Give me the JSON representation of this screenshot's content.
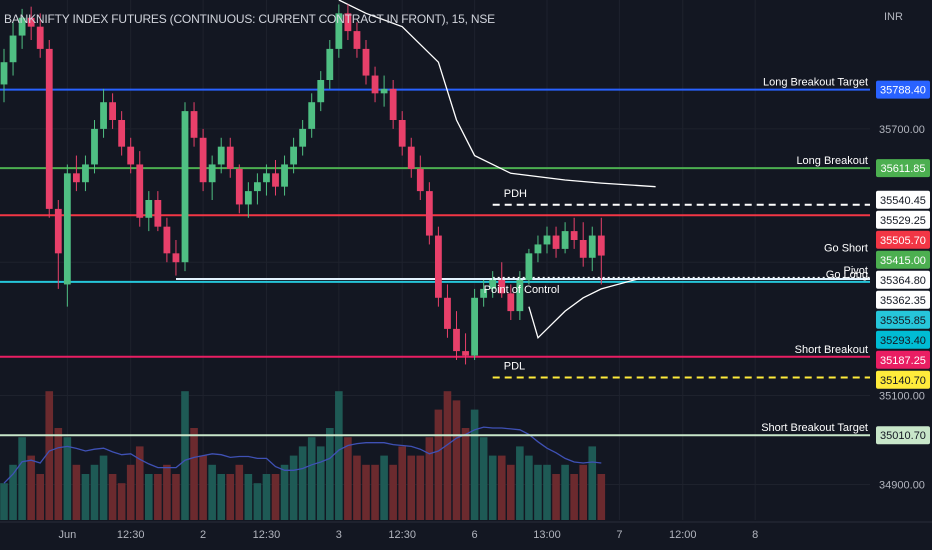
{
  "header": {
    "symbol_title": "BANKNIFTY INDEX FUTURES (CONTINUOUS: CURRENT CONTRACT IN FRONT), 15, NSE",
    "currency": "INR"
  },
  "chart_data": {
    "type": "candlestick",
    "title": "BANKNIFTY INDEX FUTURES (CONTINUOUS: CURRENT CONTRACT IN FRONT), 15, NSE",
    "ylim": [
      34820,
      35990
    ],
    "y_scale_labels": [
      "35700.00",
      "35100.00",
      "34900.00"
    ],
    "x_labels": [
      {
        "label": "Jun",
        "bar": 7
      },
      {
        "label": "12:30",
        "bar": 14
      },
      {
        "label": "2",
        "bar": 22
      },
      {
        "label": "12:30",
        "bar": 29
      },
      {
        "label": "3",
        "bar": 37
      },
      {
        "label": "12:30",
        "bar": 44
      },
      {
        "label": "6",
        "bar": 52
      },
      {
        "label": "13:00",
        "bar": 60
      },
      {
        "label": "7",
        "bar": 68
      },
      {
        "label": "12:00",
        "bar": 75
      },
      {
        "label": "8",
        "bar": 83
      }
    ],
    "colors": {
      "up": "#26a69a",
      "down": "#ef5350",
      "up_vol": "#1e5a55",
      "down_vol": "#6b2a2e",
      "poc_line": "#ffffff",
      "vol_ma": "#3f51b5"
    },
    "candles": [
      {
        "o": 35800,
        "h": 35880,
        "l": 35760,
        "c": 35850
      },
      {
        "o": 35850,
        "h": 35940,
        "l": 35820,
        "c": 35910
      },
      {
        "o": 35910,
        "h": 35970,
        "l": 35880,
        "c": 35950
      },
      {
        "o": 35950,
        "h": 35975,
        "l": 35900,
        "c": 35930
      },
      {
        "o": 35930,
        "h": 35960,
        "l": 35860,
        "c": 35880
      },
      {
        "o": 35880,
        "h": 35900,
        "l": 35500,
        "c": 35520
      },
      {
        "o": 35520,
        "h": 35540,
        "l": 35340,
        "c": 35420
      },
      {
        "o": 35350,
        "h": 35620,
        "l": 35300,
        "c": 35600
      },
      {
        "o": 35600,
        "h": 35640,
        "l": 35560,
        "c": 35580
      },
      {
        "o": 35580,
        "h": 35640,
        "l": 35560,
        "c": 35620
      },
      {
        "o": 35620,
        "h": 35720,
        "l": 35600,
        "c": 35700
      },
      {
        "o": 35700,
        "h": 35790,
        "l": 35680,
        "c": 35760
      },
      {
        "o": 35760,
        "h": 35780,
        "l": 35700,
        "c": 35720
      },
      {
        "o": 35720,
        "h": 35740,
        "l": 35640,
        "c": 35660
      },
      {
        "o": 35660,
        "h": 35680,
        "l": 35600,
        "c": 35620
      },
      {
        "o": 35620,
        "h": 35650,
        "l": 35480,
        "c": 35500
      },
      {
        "o": 35500,
        "h": 35560,
        "l": 35470,
        "c": 35540
      },
      {
        "o": 35540,
        "h": 35560,
        "l": 35470,
        "c": 35480
      },
      {
        "o": 35480,
        "h": 35500,
        "l": 35400,
        "c": 35420
      },
      {
        "o": 35420,
        "h": 35450,
        "l": 35370,
        "c": 35400
      },
      {
        "o": 35400,
        "h": 35760,
        "l": 35380,
        "c": 35740
      },
      {
        "o": 35740,
        "h": 35760,
        "l": 35660,
        "c": 35680
      },
      {
        "o": 35680,
        "h": 35700,
        "l": 35560,
        "c": 35580
      },
      {
        "o": 35580,
        "h": 35640,
        "l": 35540,
        "c": 35620
      },
      {
        "o": 35620,
        "h": 35680,
        "l": 35600,
        "c": 35660
      },
      {
        "o": 35660,
        "h": 35680,
        "l": 35590,
        "c": 35610
      },
      {
        "o": 35610,
        "h": 35620,
        "l": 35510,
        "c": 35530
      },
      {
        "o": 35530,
        "h": 35580,
        "l": 35500,
        "c": 35560
      },
      {
        "o": 35560,
        "h": 35600,
        "l": 35530,
        "c": 35580
      },
      {
        "o": 35580,
        "h": 35620,
        "l": 35550,
        "c": 35600
      },
      {
        "o": 35600,
        "h": 35630,
        "l": 35550,
        "c": 35570
      },
      {
        "o": 35570,
        "h": 35640,
        "l": 35550,
        "c": 35620
      },
      {
        "o": 35620,
        "h": 35680,
        "l": 35600,
        "c": 35660
      },
      {
        "o": 35660,
        "h": 35720,
        "l": 35640,
        "c": 35700
      },
      {
        "o": 35700,
        "h": 35780,
        "l": 35680,
        "c": 35760
      },
      {
        "o": 35760,
        "h": 35830,
        "l": 35740,
        "c": 35810
      },
      {
        "o": 35810,
        "h": 35900,
        "l": 35790,
        "c": 35880
      },
      {
        "o": 35880,
        "h": 35980,
        "l": 35860,
        "c": 35960
      },
      {
        "o": 35960,
        "h": 35980,
        "l": 35900,
        "c": 35920
      },
      {
        "o": 35920,
        "h": 35940,
        "l": 35860,
        "c": 35880
      },
      {
        "o": 35880,
        "h": 35900,
        "l": 35800,
        "c": 35820
      },
      {
        "o": 35820,
        "h": 35840,
        "l": 35760,
        "c": 35780
      },
      {
        "o": 35780,
        "h": 35820,
        "l": 35750,
        "c": 35790
      },
      {
        "o": 35790,
        "h": 35810,
        "l": 35700,
        "c": 35720
      },
      {
        "o": 35720,
        "h": 35740,
        "l": 35640,
        "c": 35660
      },
      {
        "o": 35660,
        "h": 35680,
        "l": 35590,
        "c": 35610
      },
      {
        "o": 35610,
        "h": 35640,
        "l": 35540,
        "c": 35560
      },
      {
        "o": 35560,
        "h": 35580,
        "l": 35440,
        "c": 35460
      },
      {
        "o": 35460,
        "h": 35480,
        "l": 35300,
        "c": 35320
      },
      {
        "o": 35320,
        "h": 35350,
        "l": 35230,
        "c": 35250
      },
      {
        "o": 35250,
        "h": 35290,
        "l": 35180,
        "c": 35200
      },
      {
        "o": 35200,
        "h": 35240,
        "l": 35170,
        "c": 35190
      },
      {
        "o": 35190,
        "h": 35340,
        "l": 35180,
        "c": 35320
      },
      {
        "o": 35320,
        "h": 35360,
        "l": 35300,
        "c": 35340
      },
      {
        "o": 35340,
        "h": 35380,
        "l": 35320,
        "c": 35360
      },
      {
        "o": 35360,
        "h": 35400,
        "l": 35320,
        "c": 35330
      },
      {
        "o": 35330,
        "h": 35350,
        "l": 35270,
        "c": 35290
      },
      {
        "o": 35290,
        "h": 35380,
        "l": 35270,
        "c": 35360
      },
      {
        "o": 35360,
        "h": 35430,
        "l": 35350,
        "c": 35420
      },
      {
        "o": 35420,
        "h": 35460,
        "l": 35400,
        "c": 35440
      },
      {
        "o": 35440,
        "h": 35480,
        "l": 35420,
        "c": 35460
      },
      {
        "o": 35460,
        "h": 35480,
        "l": 35410,
        "c": 35430
      },
      {
        "o": 35430,
        "h": 35490,
        "l": 35420,
        "c": 35470
      },
      {
        "o": 35470,
        "h": 35500,
        "l": 35430,
        "c": 35450
      },
      {
        "o": 35450,
        "h": 35490,
        "l": 35390,
        "c": 35410
      },
      {
        "o": 35410,
        "h": 35480,
        "l": 35380,
        "c": 35460
      },
      {
        "o": 35460,
        "h": 35500,
        "l": 35350,
        "c": 35415
      }
    ],
    "volume": [
      4,
      6,
      9,
      7,
      5,
      14,
      10,
      9,
      6,
      5,
      6,
      7,
      5,
      4,
      6,
      8,
      5,
      5,
      6,
      5,
      14,
      10,
      7,
      6,
      5,
      5,
      6,
      5,
      4,
      5,
      5,
      6,
      7,
      8,
      9,
      8,
      10,
      14,
      9,
      7,
      6,
      6,
      7,
      6,
      8,
      7,
      7,
      9,
      12,
      14,
      13,
      10,
      12,
      9,
      7,
      7,
      6,
      8,
      7,
      6,
      6,
      5,
      6,
      5,
      6,
      8,
      5
    ],
    "price_levels": [
      {
        "label": "Long Breakout Target",
        "value": "35788.40",
        "color": "#2962ff",
        "text_color": "#ffffff",
        "style": "solid"
      },
      {
        "label": "Long Breakout",
        "value": "35611.85",
        "color": "#4caf50",
        "text_color": "#ffffff",
        "style": "solid"
      },
      {
        "label": "",
        "value": "35540.45",
        "color": "#ffffff",
        "text_color": "#131722",
        "style": "curve"
      },
      {
        "label": "",
        "value": "35529.25",
        "color": "#ffffff",
        "text_color": "#131722",
        "style": "dashed"
      },
      {
        "label": "",
        "value": "35505.70",
        "color": "#f23645",
        "text_color": "#ffffff",
        "style": "solid"
      },
      {
        "label": "Go Short",
        "value": "35415.00",
        "color": "#4caf50",
        "text_color": "#ffffff",
        "style": "none"
      },
      {
        "label": "Pivot",
        "value": "35364.80",
        "color": "#ffffff",
        "text_color": "#131722",
        "style": "dotted"
      },
      {
        "label": "",
        "value": "35362.35",
        "color": "#ffffff",
        "text_color": "#131722",
        "style": "solid"
      },
      {
        "label": "Go Long",
        "value": "35355.85",
        "color": "#26c6da",
        "text_color": "#131722",
        "style": "solid"
      },
      {
        "label": "",
        "value": "35293.40",
        "color": "#00bcd4",
        "text_color": "#131722",
        "style": "none"
      },
      {
        "label": "Short Breakout",
        "value": "35187.25",
        "color": "#e91e63",
        "text_color": "#ffffff",
        "style": "solid"
      },
      {
        "label": "",
        "value": "35140.70",
        "color": "#ffeb3b",
        "text_color": "#131722",
        "style": "dashed"
      },
      {
        "label": "Short Breakout Target",
        "value": "35010.70",
        "color": "#c8e6c9",
        "text_color": "#131722",
        "style": "solid"
      }
    ],
    "annotations": [
      "PDH",
      "Point of Control",
      "PDL"
    ]
  }
}
